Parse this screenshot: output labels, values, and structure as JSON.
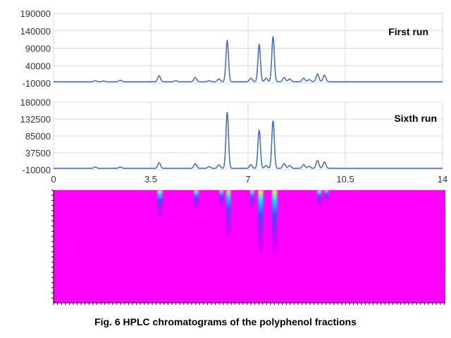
{
  "caption": "Fig. 6    HPLC chromatograms of the polyphenol fractions",
  "colors": {
    "line": "#4472c4",
    "grid": "#d9d9d9",
    "heatmap_background": "#ff00ff"
  },
  "chart_data": [
    {
      "type": "line",
      "title": "First run",
      "xlabel": "",
      "ylabel": "",
      "xlim": [
        0,
        14
      ],
      "ylim": [
        -10000,
        190000
      ],
      "yticks": [
        "190000",
        "140000",
        "90000",
        "40000",
        "-10000"
      ],
      "grid": true,
      "peaks": [
        {
          "x": 1.5,
          "y": 3000
        },
        {
          "x": 1.8,
          "y": 2000
        },
        {
          "x": 2.4,
          "y": 4000
        },
        {
          "x": 3.8,
          "y": 17000
        },
        {
          "x": 4.4,
          "y": 3000
        },
        {
          "x": 5.1,
          "y": 12000
        },
        {
          "x": 5.6,
          "y": 3000
        },
        {
          "x": 5.95,
          "y": 8000
        },
        {
          "x": 6.25,
          "y": 118000
        },
        {
          "x": 7.1,
          "y": 10000
        },
        {
          "x": 7.4,
          "y": 107000
        },
        {
          "x": 7.65,
          "y": 10000
        },
        {
          "x": 7.9,
          "y": 130000
        },
        {
          "x": 8.3,
          "y": 12000
        },
        {
          "x": 8.5,
          "y": 8000
        },
        {
          "x": 9.0,
          "y": 10000
        },
        {
          "x": 9.2,
          "y": 6000
        },
        {
          "x": 9.5,
          "y": 22000
        },
        {
          "x": 9.75,
          "y": 19000
        }
      ]
    },
    {
      "type": "line",
      "title": "Sixth run",
      "xlabel": "",
      "ylabel": "",
      "xlim": [
        0,
        14
      ],
      "ylim": [
        -10000,
        180000
      ],
      "yticks": [
        "180000",
        "132500",
        "85000",
        "37500",
        "-10000"
      ],
      "xticks": [
        "0",
        "3.5",
        "7",
        "10.5",
        "14"
      ],
      "grid": true,
      "peaks": [
        {
          "x": 1.5,
          "y": 4000
        },
        {
          "x": 2.4,
          "y": 4000
        },
        {
          "x": 3.8,
          "y": 16000
        },
        {
          "x": 5.1,
          "y": 13000
        },
        {
          "x": 5.6,
          "y": 5000
        },
        {
          "x": 5.95,
          "y": 10000
        },
        {
          "x": 6.25,
          "y": 158000
        },
        {
          "x": 7.1,
          "y": 10000
        },
        {
          "x": 7.4,
          "y": 107000
        },
        {
          "x": 7.65,
          "y": 8000
        },
        {
          "x": 7.9,
          "y": 134000
        },
        {
          "x": 8.3,
          "y": 13000
        },
        {
          "x": 8.5,
          "y": 8000
        },
        {
          "x": 9.0,
          "y": 11000
        },
        {
          "x": 9.2,
          "y": 6000
        },
        {
          "x": 9.5,
          "y": 22000
        },
        {
          "x": 9.75,
          "y": 18000
        }
      ]
    },
    {
      "type": "heatmap",
      "xlim": [
        0,
        14
      ],
      "bands": [
        {
          "x": 3.8,
          "intensity": 0.9,
          "length": 0.25
        },
        {
          "x": 5.1,
          "intensity": 0.75,
          "length": 0.18
        },
        {
          "x": 6.0,
          "intensity": 0.6,
          "length": 0.15
        },
        {
          "x": 6.25,
          "intensity": 0.8,
          "length": 0.45
        },
        {
          "x": 7.1,
          "intensity": 0.6,
          "length": 0.18
        },
        {
          "x": 7.4,
          "intensity": 1.0,
          "length": 0.6
        },
        {
          "x": 7.9,
          "intensity": 1.0,
          "length": 0.6
        },
        {
          "x": 9.5,
          "intensity": 0.7,
          "length": 0.15
        },
        {
          "x": 9.75,
          "intensity": 0.6,
          "length": 0.1
        }
      ]
    }
  ]
}
